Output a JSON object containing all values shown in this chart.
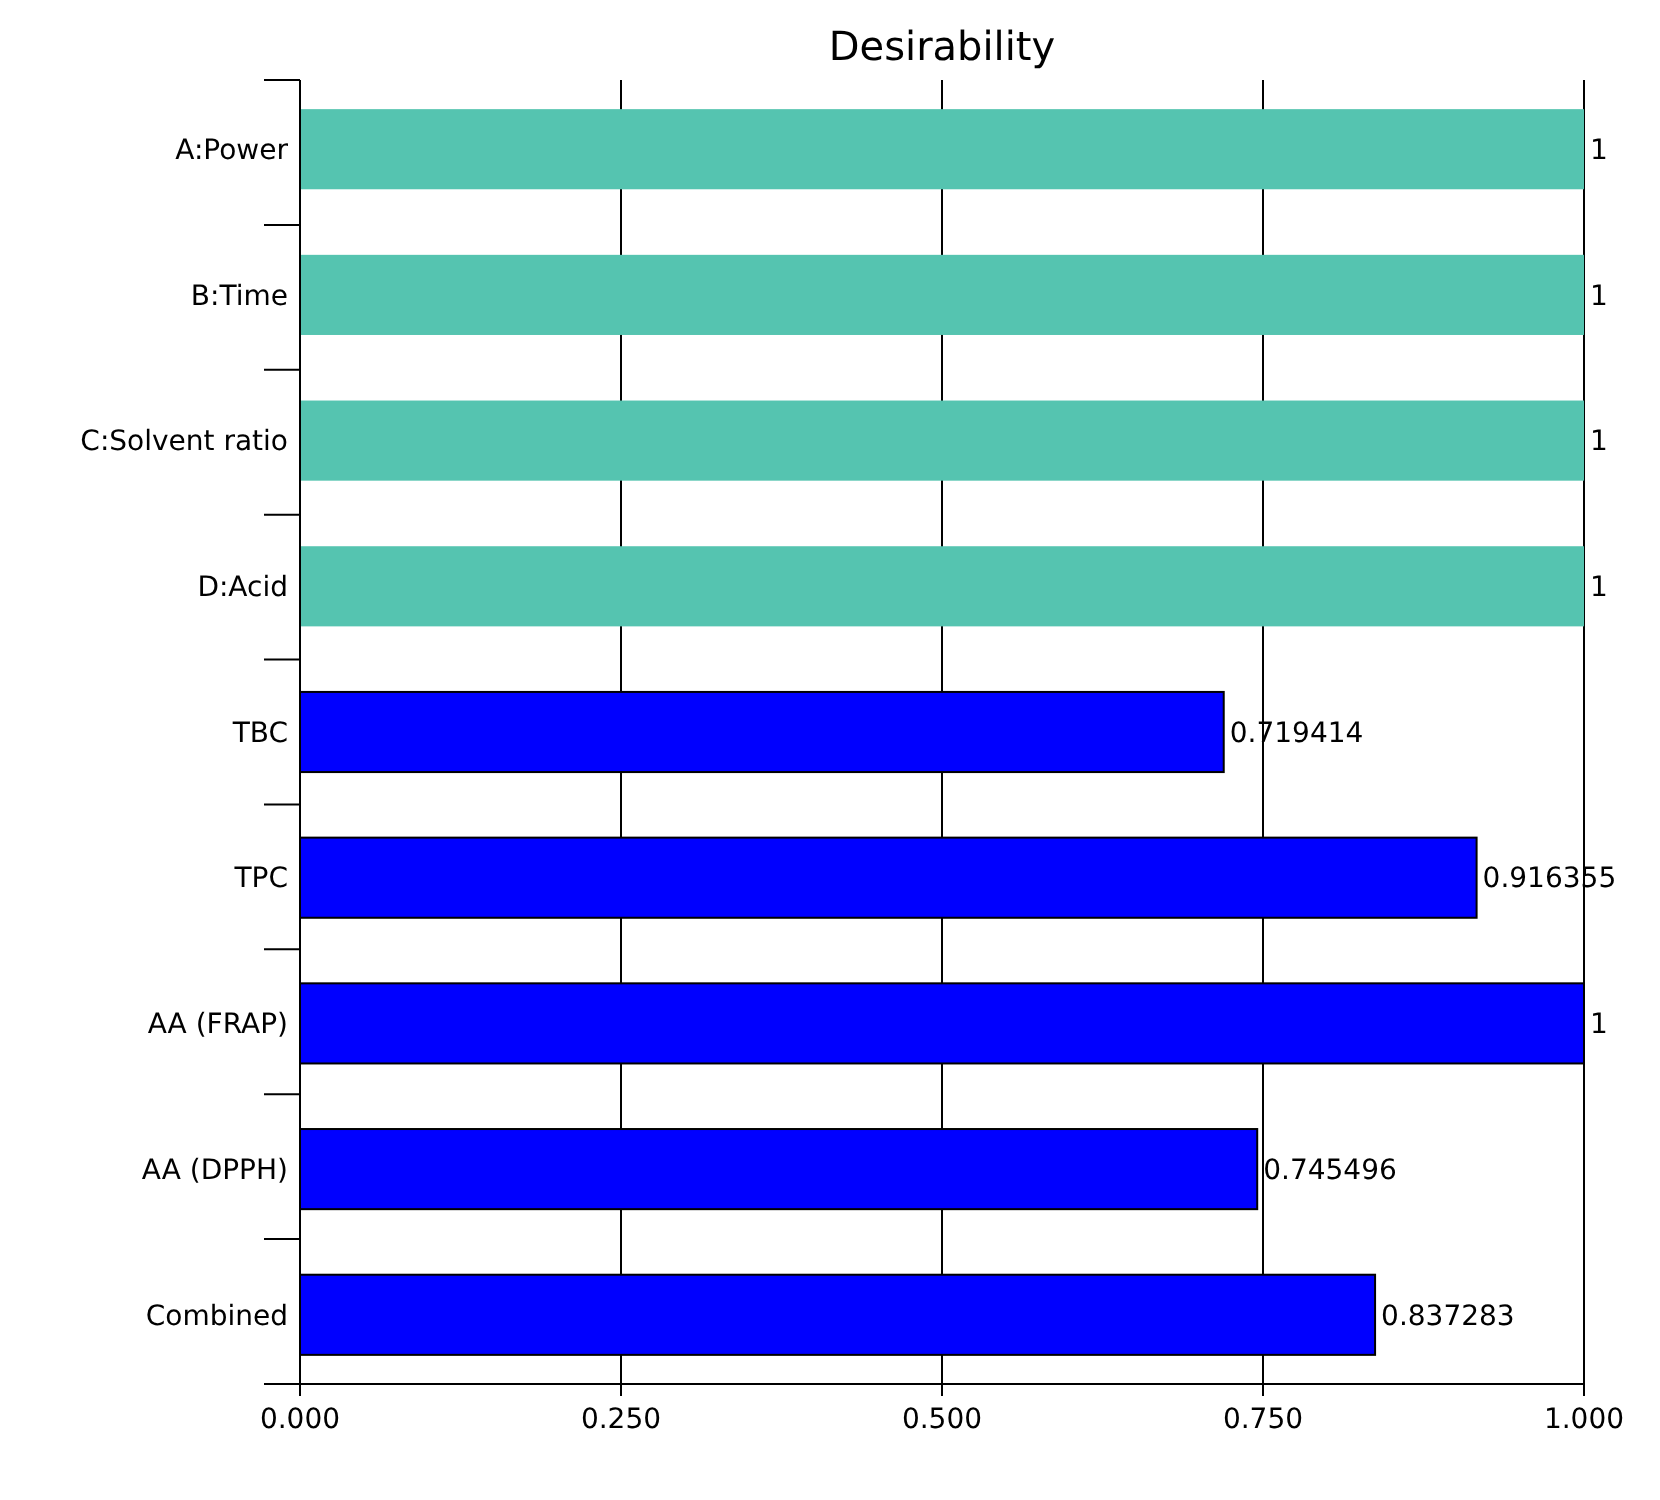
{
  "chart_data": {
    "type": "bar",
    "orientation": "horizontal",
    "title": "Desirability",
    "categories": [
      "A:Power",
      "B:Time",
      "C:Solvent ratio",
      "D:Acid",
      "TBC",
      "TPC",
      "AA (FRAP)",
      "AA (DPPH)",
      "Combined"
    ],
    "values": [
      1,
      1,
      1,
      1,
      0.719414,
      0.916355,
      1,
      0.745496,
      0.837283
    ],
    "colors": [
      "#55c4b0",
      "#55c4b0",
      "#55c4b0",
      "#55c4b0",
      "#0000ff",
      "#0000ff",
      "#0000ff",
      "#0000ff",
      "#0000ff"
    ],
    "xlim": [
      0,
      1
    ],
    "xticks": [
      {
        "value": 0,
        "label": "0.000"
      },
      {
        "value": 0.25,
        "label": "0.250"
      },
      {
        "value": 0.5,
        "label": "0.500"
      },
      {
        "value": 0.75,
        "label": "0.750"
      },
      {
        "value": 1,
        "label": "1.000"
      }
    ],
    "grid": "x",
    "data_labels": true
  }
}
